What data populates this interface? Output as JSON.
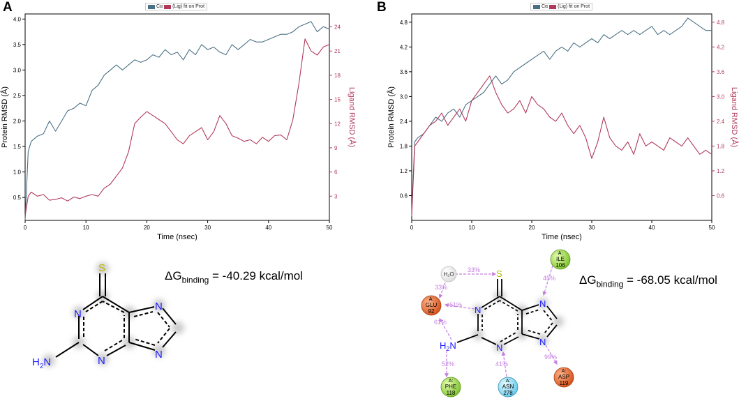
{
  "panels": [
    {
      "letter": "A",
      "legend": {
        "label": "(Lig) fit on Prot",
        "prefix": "Cα",
        "protein_color": "#4a7085",
        "ligand_color": "#b03a5b"
      },
      "delta_g": {
        "prefix": "ΔG",
        "sub": "binding",
        "value": "= -40.29 kcal/mol"
      },
      "molecule": {
        "S": "S",
        "N1": "N",
        "N2": "N",
        "N3": "N",
        "N4": "N",
        "H2N": "H2N",
        "H2N_h": "H",
        "H2N_sub": "2",
        "H2N_n": "N"
      }
    },
    {
      "letter": "B",
      "legend": {
        "label": "(Lig) fit on Prot",
        "prefix": "Cα",
        "protein_color": "#4a7085",
        "ligand_color": "#b03a5b"
      },
      "delta_g": {
        "prefix": "ΔG",
        "sub": "binding",
        "value": "= -68.05 kcal/mol"
      },
      "molecule": {
        "S": "S",
        "N1": "N",
        "N2": "N",
        "N3": "N",
        "N4": "N",
        "H2N_h": "H",
        "H2N_sub": "2",
        "H2N_n": "N"
      },
      "interactions": {
        "h2o": "H₂O",
        "pct_33a": "33%",
        "pct_33b": "33%",
        "pct_45": "45%",
        "pct_61a": "61%",
        "pct_61b": "61%",
        "pct_52": "52%",
        "pct_41": "41%",
        "pct_99": "99%",
        "residues": [
          {
            "chain": "A:",
            "name": "GLU",
            "num": "92",
            "color": "#e0622a"
          },
          {
            "chain": "A:",
            "name": "ILE",
            "num": "106",
            "color": "#8ccf3a"
          },
          {
            "chain": "A:",
            "name": "PHE",
            "num": "118",
            "color": "#8ccf3a"
          },
          {
            "chain": "A:",
            "name": "ASN",
            "num": "278",
            "color": "#7fd4ef"
          },
          {
            "chain": "A:",
            "name": "ASP",
            "num": "119",
            "color": "#e0622a"
          }
        ]
      }
    }
  ],
  "chart_data": [
    {
      "type": "line",
      "title": "",
      "xlabel": "Time (nsec)",
      "ylabel": "Protein RMSD (Å)",
      "y2label": "Ligand RMSD (Å)",
      "xlim": [
        0,
        50
      ],
      "ylim": [
        0.05,
        4.1
      ],
      "y2lim": [
        0,
        25.6
      ],
      "xticks": [
        0,
        10,
        20,
        30,
        40,
        50
      ],
      "yticks": [
        0.5,
        1.0,
        1.5,
        2.0,
        2.5,
        3.0,
        3.5,
        4.0
      ],
      "ytick_labels": [
        "0.5",
        "1.0",
        "1.5",
        "2.0",
        "2.5",
        "3.0",
        "3.5",
        "4.0"
      ],
      "y2ticks": [
        3,
        6,
        9,
        12,
        15,
        18,
        21,
        24
      ],
      "y2tick_labels": [
        "3",
        "6",
        "9",
        "12",
        "15",
        "18",
        "21",
        "24"
      ],
      "series": [
        {
          "name": "Protein",
          "axis": "left",
          "color": "#4a7085",
          "x": [
            0,
            0.5,
            1,
            2,
            3,
            4,
            5,
            6,
            7,
            8,
            9,
            10,
            11,
            12,
            13,
            14,
            15,
            16,
            17,
            18,
            19,
            20,
            21,
            22,
            23,
            24,
            25,
            26,
            27,
            28,
            29,
            30,
            31,
            32,
            33,
            34,
            35,
            36,
            37,
            38,
            39,
            40,
            41,
            42,
            43,
            44,
            45,
            46,
            47,
            48,
            49,
            50
          ],
          "values": [
            0.05,
            1.4,
            1.6,
            1.7,
            1.75,
            2.0,
            1.8,
            2.0,
            2.2,
            2.25,
            2.35,
            2.3,
            2.6,
            2.7,
            2.9,
            3.0,
            3.1,
            3.0,
            3.1,
            3.2,
            3.15,
            3.2,
            3.3,
            3.25,
            3.4,
            3.3,
            3.35,
            3.2,
            3.4,
            3.3,
            3.5,
            3.4,
            3.45,
            3.35,
            3.3,
            3.5,
            3.4,
            3.5,
            3.6,
            3.55,
            3.55,
            3.6,
            3.65,
            3.7,
            3.7,
            3.75,
            3.85,
            3.9,
            3.95,
            3.75,
            3.85,
            3.8
          ]
        },
        {
          "name": "Ligand",
          "axis": "right",
          "color": "#b03a5b",
          "x": [
            0,
            0.5,
            1,
            2,
            3,
            4,
            5,
            6,
            7,
            8,
            9,
            10,
            11,
            12,
            13,
            14,
            15,
            16,
            17,
            18,
            19,
            20,
            21,
            22,
            23,
            24,
            25,
            26,
            27,
            28,
            29,
            30,
            31,
            32,
            33,
            34,
            35,
            36,
            37,
            38,
            39,
            40,
            41,
            42,
            43,
            44,
            45,
            46,
            47,
            48,
            49,
            50
          ],
          "values": [
            0.5,
            3.0,
            3.5,
            3.0,
            3.2,
            2.5,
            2.6,
            2.8,
            2.4,
            2.9,
            2.7,
            3.0,
            3.2,
            3.0,
            4.0,
            4.5,
            5.5,
            6.5,
            8.5,
            12.0,
            12.8,
            13.5,
            13.0,
            12.5,
            12.0,
            11.0,
            10.0,
            9.5,
            10.5,
            11.0,
            11.5,
            10.0,
            11.0,
            13.0,
            12.0,
            10.5,
            10.2,
            9.8,
            10.0,
            9.5,
            10.3,
            9.8,
            10.5,
            10.6,
            10.0,
            12.5,
            17.0,
            22.5,
            21.0,
            20.5,
            21.5,
            21.8
          ]
        }
      ]
    },
    {
      "type": "line",
      "title": "",
      "xlabel": "Time (nsec)",
      "ylabel": "Protein RMSD (Å)",
      "y2label": "Ligand RMSD (Å)",
      "xlim": [
        0,
        50
      ],
      "ylim": [
        0,
        5.0
      ],
      "y2lim": [
        0,
        5.0
      ],
      "xticks": [
        0,
        10,
        20,
        30,
        40,
        50
      ],
      "yticks": [
        0.6,
        1.2,
        1.8,
        2.4,
        3.0,
        3.6,
        4.2,
        4.8
      ],
      "ytick_labels": [
        "0.6",
        "1.2",
        "1.8",
        "2.4",
        "3.0",
        "3.6",
        "4.2",
        "4.8"
      ],
      "y2ticks": [
        0.6,
        1.2,
        1.8,
        2.4,
        3.0,
        3.6,
        4.2,
        4.8
      ],
      "y2tick_labels": [
        "0.6",
        "1.2",
        "1.8",
        "2.4",
        "3.0",
        "3.6",
        "4.2",
        "4.8"
      ],
      "series": [
        {
          "name": "Protein",
          "axis": "left",
          "color": "#4a7085",
          "x": [
            0,
            0.5,
            1,
            2,
            3,
            4,
            5,
            6,
            7,
            8,
            9,
            10,
            11,
            12,
            13,
            14,
            15,
            16,
            17,
            18,
            19,
            20,
            21,
            22,
            23,
            24,
            25,
            26,
            27,
            28,
            29,
            30,
            31,
            32,
            33,
            34,
            35,
            36,
            37,
            38,
            39,
            40,
            41,
            42,
            43,
            44,
            45,
            46,
            47,
            48,
            49,
            50
          ],
          "values": [
            0.2,
            1.9,
            2.0,
            2.1,
            2.3,
            2.5,
            2.4,
            2.6,
            2.7,
            2.5,
            2.8,
            2.9,
            3.0,
            3.1,
            3.3,
            3.5,
            3.3,
            3.4,
            3.6,
            3.7,
            3.8,
            3.9,
            4.0,
            4.1,
            3.9,
            4.1,
            4.2,
            4.1,
            4.3,
            4.2,
            4.3,
            4.4,
            4.3,
            4.5,
            4.4,
            4.5,
            4.6,
            4.5,
            4.6,
            4.5,
            4.6,
            4.7,
            4.5,
            4.6,
            4.5,
            4.6,
            4.7,
            4.9,
            4.8,
            4.7,
            4.6,
            4.6
          ]
        },
        {
          "name": "Ligand",
          "axis": "right",
          "color": "#b03a5b",
          "x": [
            0,
            0.5,
            1,
            2,
            3,
            4,
            5,
            6,
            7,
            8,
            9,
            10,
            11,
            12,
            13,
            14,
            15,
            16,
            17,
            18,
            19,
            20,
            21,
            22,
            23,
            24,
            25,
            26,
            27,
            28,
            29,
            30,
            31,
            32,
            33,
            34,
            35,
            36,
            37,
            38,
            39,
            40,
            41,
            42,
            43,
            44,
            45,
            46,
            47,
            48,
            49,
            50
          ],
          "values": [
            0.1,
            1.8,
            1.9,
            2.1,
            2.3,
            2.4,
            2.6,
            2.3,
            2.5,
            2.7,
            2.4,
            2.9,
            3.1,
            3.3,
            3.5,
            3.1,
            2.8,
            2.6,
            2.7,
            2.9,
            2.6,
            3.0,
            2.8,
            2.7,
            2.5,
            2.4,
            2.6,
            2.3,
            2.1,
            2.3,
            2.0,
            1.5,
            1.9,
            2.5,
            2.0,
            1.8,
            1.7,
            1.9,
            1.6,
            2.1,
            1.8,
            1.9,
            1.8,
            1.7,
            2.0,
            1.9,
            1.8,
            2.0,
            1.8,
            1.6,
            1.7,
            1.6
          ]
        }
      ]
    }
  ]
}
